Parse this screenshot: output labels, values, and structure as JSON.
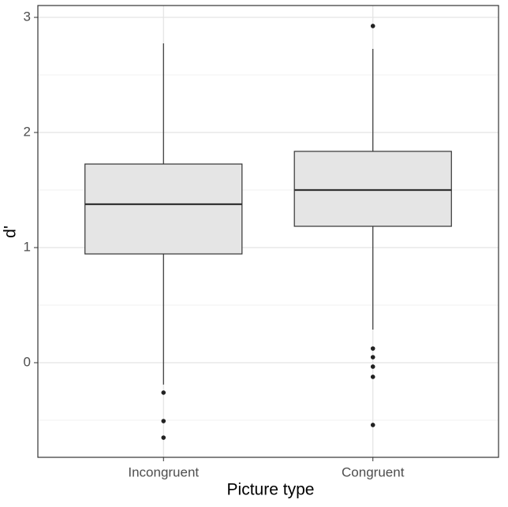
{
  "chart_data": {
    "type": "box",
    "x_label": "Picture type",
    "y_label": "d'",
    "categories": [
      "Incongruent",
      "Congruent"
    ],
    "boxes": [
      {
        "whisker_low": -0.19,
        "q1": 0.945,
        "median": 1.377,
        "q3": 1.726,
        "whisker_high": 2.774,
        "outliers": [
          -0.26,
          -0.507,
          -0.651
        ]
      },
      {
        "whisker_low": 0.288,
        "q1": 1.185,
        "median": 1.5,
        "q3": 1.836,
        "whisker_high": 2.726,
        "outliers": [
          2.925,
          0.123,
          0.048,
          -0.034,
          -0.123,
          -0.541
        ]
      }
    ],
    "color": "#e5e5e5",
    "ylim": [
      -0.822,
      3.103
    ],
    "yticks": [
      0,
      1,
      2,
      3
    ],
    "minor_yticks": [
      -0.5,
      0.5,
      1.5,
      2.5
    ],
    "grid": true
  }
}
